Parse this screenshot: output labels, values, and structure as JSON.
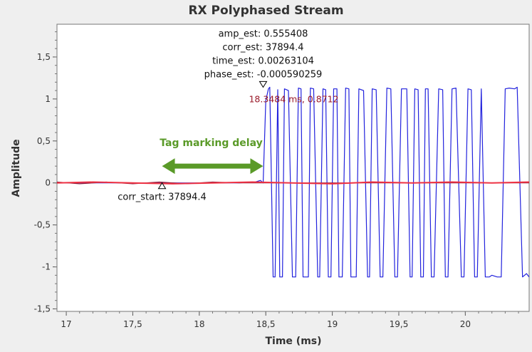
{
  "chart_data": {
    "type": "line",
    "title": "RX  Polyphased Stream",
    "xlabel": "Time (ms)",
    "ylabel": "Amplitude",
    "xlim": [
      16.93,
      20.48
    ],
    "ylim": [
      -1.53,
      1.89
    ],
    "xticks": [
      17,
      17.5,
      18,
      18.5,
      19,
      19.5,
      20
    ],
    "xtick_labels": [
      "17",
      "17,5",
      "18",
      "18,5",
      "19",
      "19,5",
      "20"
    ],
    "yticks": [
      1.5,
      1,
      0.5,
      0,
      -0.5,
      -1,
      -1.5
    ],
    "ytick_labels": [
      "1,5",
      "1",
      "0,5",
      "0",
      "-0,5",
      "-1",
      "-1,5"
    ],
    "grid": false,
    "series": [
      {
        "color": "#2222dd",
        "x": [
          16.93,
          18.3,
          18.42,
          18.46,
          18.48,
          18.5,
          18.52,
          18.53,
          18.555,
          18.57,
          18.59,
          18.605,
          18.625,
          18.64,
          18.67,
          18.7,
          18.725,
          18.745,
          18.765,
          18.78,
          18.82,
          18.835,
          18.86,
          18.89,
          18.905,
          18.93,
          18.95,
          18.97,
          18.99,
          19.01,
          19.035,
          19.05,
          19.075,
          19.1,
          19.125,
          19.14,
          19.18,
          19.2,
          19.235,
          19.265,
          19.28,
          19.3,
          19.33,
          19.36,
          19.38,
          19.41,
          19.44,
          19.47,
          19.49,
          19.52,
          19.56,
          19.585,
          19.6,
          19.62,
          19.645,
          19.665,
          19.685,
          19.7,
          19.72,
          19.745,
          19.765,
          19.8,
          19.83,
          19.85,
          19.87,
          19.9,
          19.93,
          19.97,
          19.99,
          20.02,
          20.045,
          20.07,
          20.09,
          20.12,
          20.15,
          20.18,
          20.2,
          20.24,
          20.27,
          20.3,
          20.33,
          20.37,
          20.39,
          20.43,
          20.46,
          20.48
        ],
        "y": [
          0,
          0,
          0.01,
          0.03,
          0,
          0.98,
          1.12,
          1.14,
          -1.12,
          -1.12,
          1.11,
          -1.12,
          -1.12,
          1.12,
          1.1,
          -1.12,
          -1.12,
          1.13,
          1.12,
          -1.12,
          -1.12,
          1.13,
          1.12,
          -1.12,
          -1.12,
          1.12,
          1.11,
          -1.12,
          -1.12,
          1.12,
          1.12,
          -1.12,
          -1.12,
          1.13,
          1.12,
          -1.12,
          -1.12,
          1.12,
          1.1,
          -1.12,
          -1.12,
          1.12,
          1.11,
          -1.12,
          -1.12,
          1.13,
          1.12,
          -1.12,
          -1.12,
          1.12,
          1.12,
          -1.12,
          -1.12,
          1.12,
          1.11,
          -1.12,
          -1.12,
          1.12,
          1.12,
          -1.12,
          -1.12,
          1.12,
          1.11,
          -1.12,
          -1.12,
          1.12,
          1.13,
          -1.12,
          -1.12,
          1.12,
          1.11,
          -1.12,
          -1.12,
          1.12,
          -1.12,
          -1.12,
          -1.1,
          -1.12,
          -1.12,
          1.12,
          1.13,
          1.12,
          1.14,
          -1.12,
          -1.08,
          -1.12
        ]
      },
      {
        "color": "#8b1a3a",
        "x": [
          16.93,
          17.1,
          17.3,
          17.5,
          17.7,
          17.9,
          18.1,
          18.3,
          18.45,
          20.48
        ],
        "y": [
          0.01,
          -0.01,
          0.01,
          -0.01,
          0.01,
          -0.01,
          0.01,
          0.0,
          0.0,
          0.0
        ]
      },
      {
        "color": "#ee3344",
        "x": [
          16.93,
          17.2,
          17.5,
          17.8,
          18.1,
          18.4,
          18.7,
          19.0,
          19.3,
          19.6,
          19.9,
          20.2,
          20.48
        ],
        "y": [
          0.0,
          0.01,
          0.0,
          -0.01,
          0.0,
          0.01,
          0.0,
          -0.01,
          0.01,
          0.0,
          0.01,
          0.0,
          0.01
        ]
      }
    ],
    "annotations": {
      "tag_down": {
        "x": 18.48,
        "y": 1.14,
        "lines": [
          "amp_est: 0.555408",
          "corr_est: 37894.4",
          "time_est: 0.00263104",
          "phase_est: -0.000590259"
        ]
      },
      "tag_up": {
        "x": 17.72,
        "y": 0.0,
        "text": "corr_start: 37894.4"
      },
      "cursor_readout": "18.3484 ms, 0.8712",
      "arrow_label": "Tag marking delay",
      "arrow_from": 17.72,
      "arrow_to": 18.48,
      "arrow_y": 0.2,
      "arrow_color": "#5a9a28"
    }
  }
}
